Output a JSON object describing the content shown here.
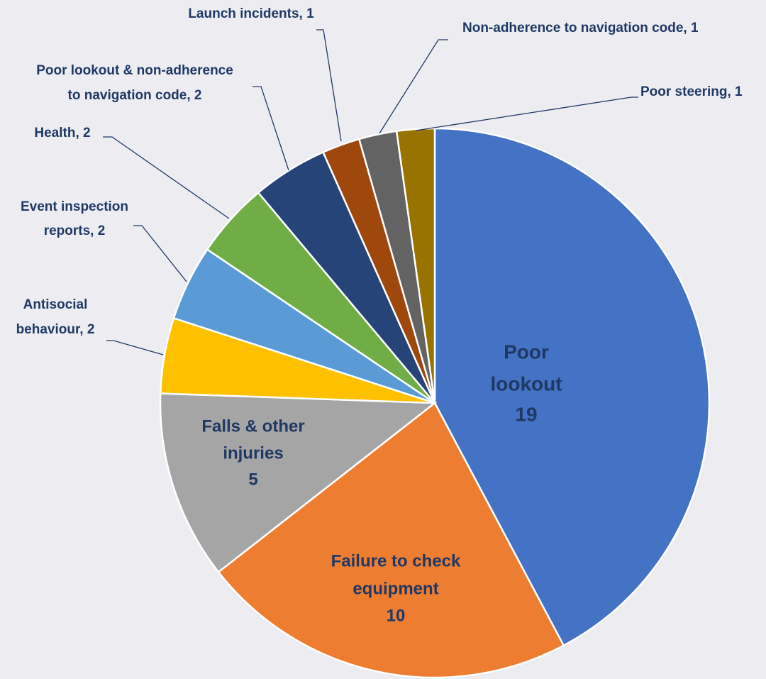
{
  "chart_data": {
    "type": "pie",
    "values": [
      19,
      10,
      5,
      2,
      2,
      2,
      2,
      1,
      1,
      1
    ],
    "value_labels": [
      [
        "Poor",
        "lookout",
        "19"
      ],
      [
        "Failure to check",
        "equipment",
        "10"
      ],
      [
        "Falls & other",
        "injuries",
        "5"
      ],
      [
        "Antisocial",
        "behaviour, 2"
      ],
      [
        "Event inspection",
        "reports, 2"
      ],
      [
        "Health, 2"
      ],
      [
        "Poor lookout & non-adherence",
        "to navigation code, 2"
      ],
      [
        "Launch incidents, 1"
      ],
      [
        "Non-adherence to navigation code, 1"
      ],
      [
        "Poor steering, 1"
      ]
    ],
    "colors": [
      "#4472c4",
      "#ed7d31",
      "#a5a5a5",
      "#ffc000",
      "#5b9bd5",
      "#70ad47",
      "#264478",
      "#9e480e",
      "#636363",
      "#997300"
    ]
  }
}
